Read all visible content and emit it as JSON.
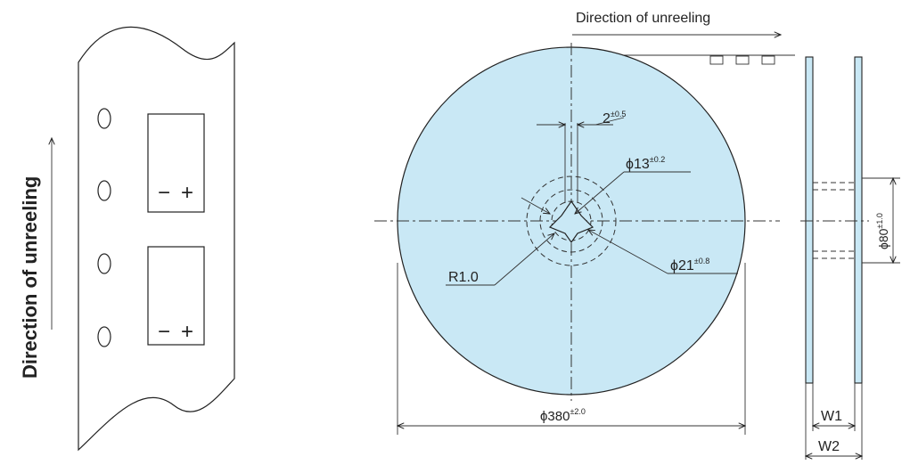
{
  "colors": {
    "reel_fill": "#c9e8f5",
    "line": "#222222"
  },
  "tape_view": {
    "direction_label": "Direction of unreeling",
    "polarity_symbols": [
      "−",
      "+"
    ]
  },
  "reel_view": {
    "direction_label": "Direction of unreeling",
    "dimensions": {
      "slot_width": {
        "main": "2",
        "tol": "±0.5"
      },
      "hub_hole": {
        "main": "ϕ13",
        "tol": "±0.2"
      },
      "hub_outer": {
        "main": "ϕ21",
        "tol": "±0.8"
      },
      "corner_radius": {
        "main": "R1.0"
      },
      "reel_diameter": {
        "main": "ϕ380",
        "tol": "±2.0"
      }
    }
  },
  "side_view": {
    "hub_diameter": {
      "main": "ϕ80",
      "tol": "±1.0"
    },
    "w1": "W1",
    "w2": "W2"
  }
}
